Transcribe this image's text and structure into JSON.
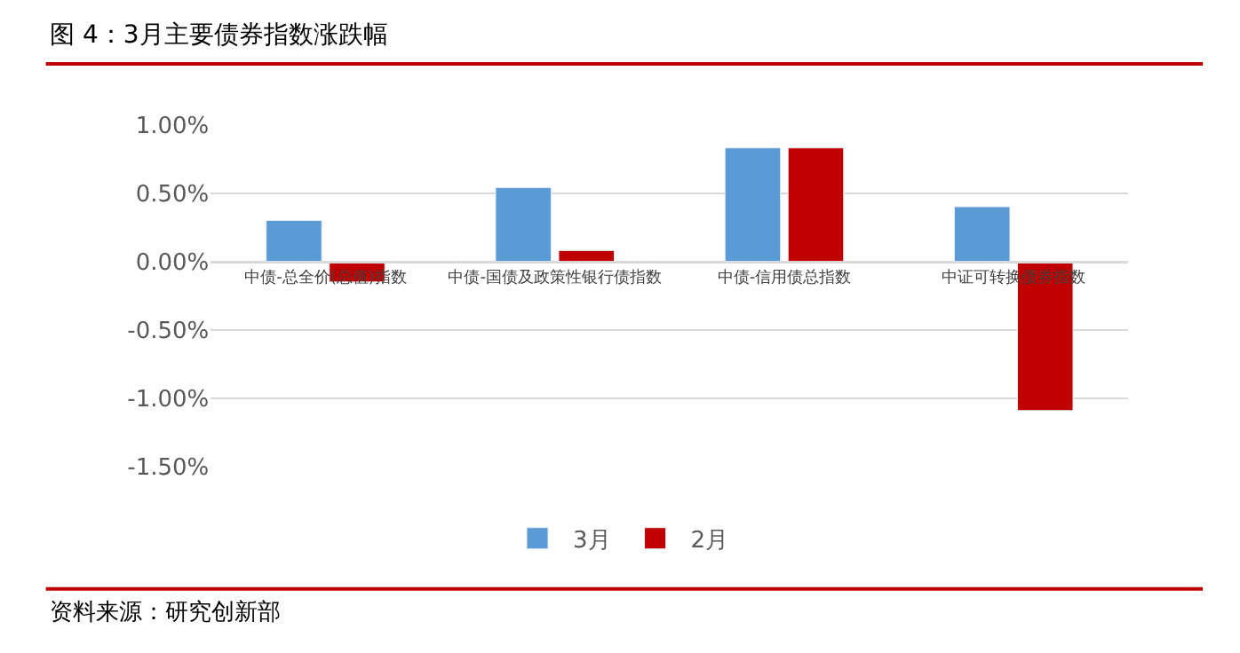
{
  "chart_data": {
    "type": "bar",
    "title": "图 4：3月主要债券指数涨跌幅",
    "categories": [
      "中债-总全价(总值)指数",
      "中债-国债及政策性银行债指数",
      "中债-信用债总指数",
      "中证可转换债券指数"
    ],
    "series": [
      {
        "name": "3月",
        "color": "#5b9bd5",
        "values": [
          0.3,
          0.54,
          0.83,
          0.4
        ]
      },
      {
        "name": "2月",
        "color": "#c00000",
        "values": [
          -0.15,
          0.08,
          0.83,
          -1.09
        ]
      }
    ],
    "ylim": [
      -1.5,
      1.0
    ],
    "yticks": [
      {
        "value": -1.5,
        "label": "-1.50%"
      },
      {
        "value": -1.0,
        "label": "-1.00%"
      },
      {
        "value": -0.5,
        "label": "-0.50%"
      },
      {
        "value": 0,
        "label": "0.00%"
      },
      {
        "value": 0.5,
        "label": "0.50%"
      },
      {
        "value": 1.0,
        "label": "1.00%"
      }
    ],
    "grid": "y",
    "legend": "bottom",
    "annotations": [
      "资料来源：研究创新部"
    ]
  }
}
